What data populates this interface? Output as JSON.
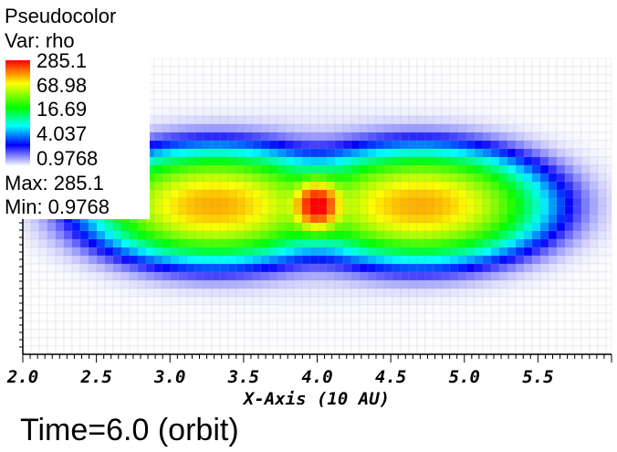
{
  "legend": {
    "plot_name": "Pseudocolor",
    "var_line": "Var: rho",
    "colorbar_labels": [
      "285.1",
      "68.98",
      "16.69",
      "4.037",
      "0.9768"
    ],
    "max_text": "Max:  285.1",
    "min_text": "Min:  0.9768",
    "colors": [
      "#ff0000",
      "#ffff00",
      "#00ff00",
      "#00ffff",
      "#0000ff",
      "#ffffff"
    ]
  },
  "time_text": "Time=6.0 (orbit)",
  "chart_data": {
    "type": "heatmap",
    "variable": "rho",
    "xlabel": "X-Axis (10 AU)",
    "x_ticks": [
      "2.0",
      "2.5",
      "3.0",
      "3.5",
      "4.0",
      "4.5",
      "5.0",
      "5.5"
    ],
    "xlim": [
      2.0,
      6.0
    ],
    "color_scale": "log",
    "max": 285.1,
    "min": 0.9768
  }
}
